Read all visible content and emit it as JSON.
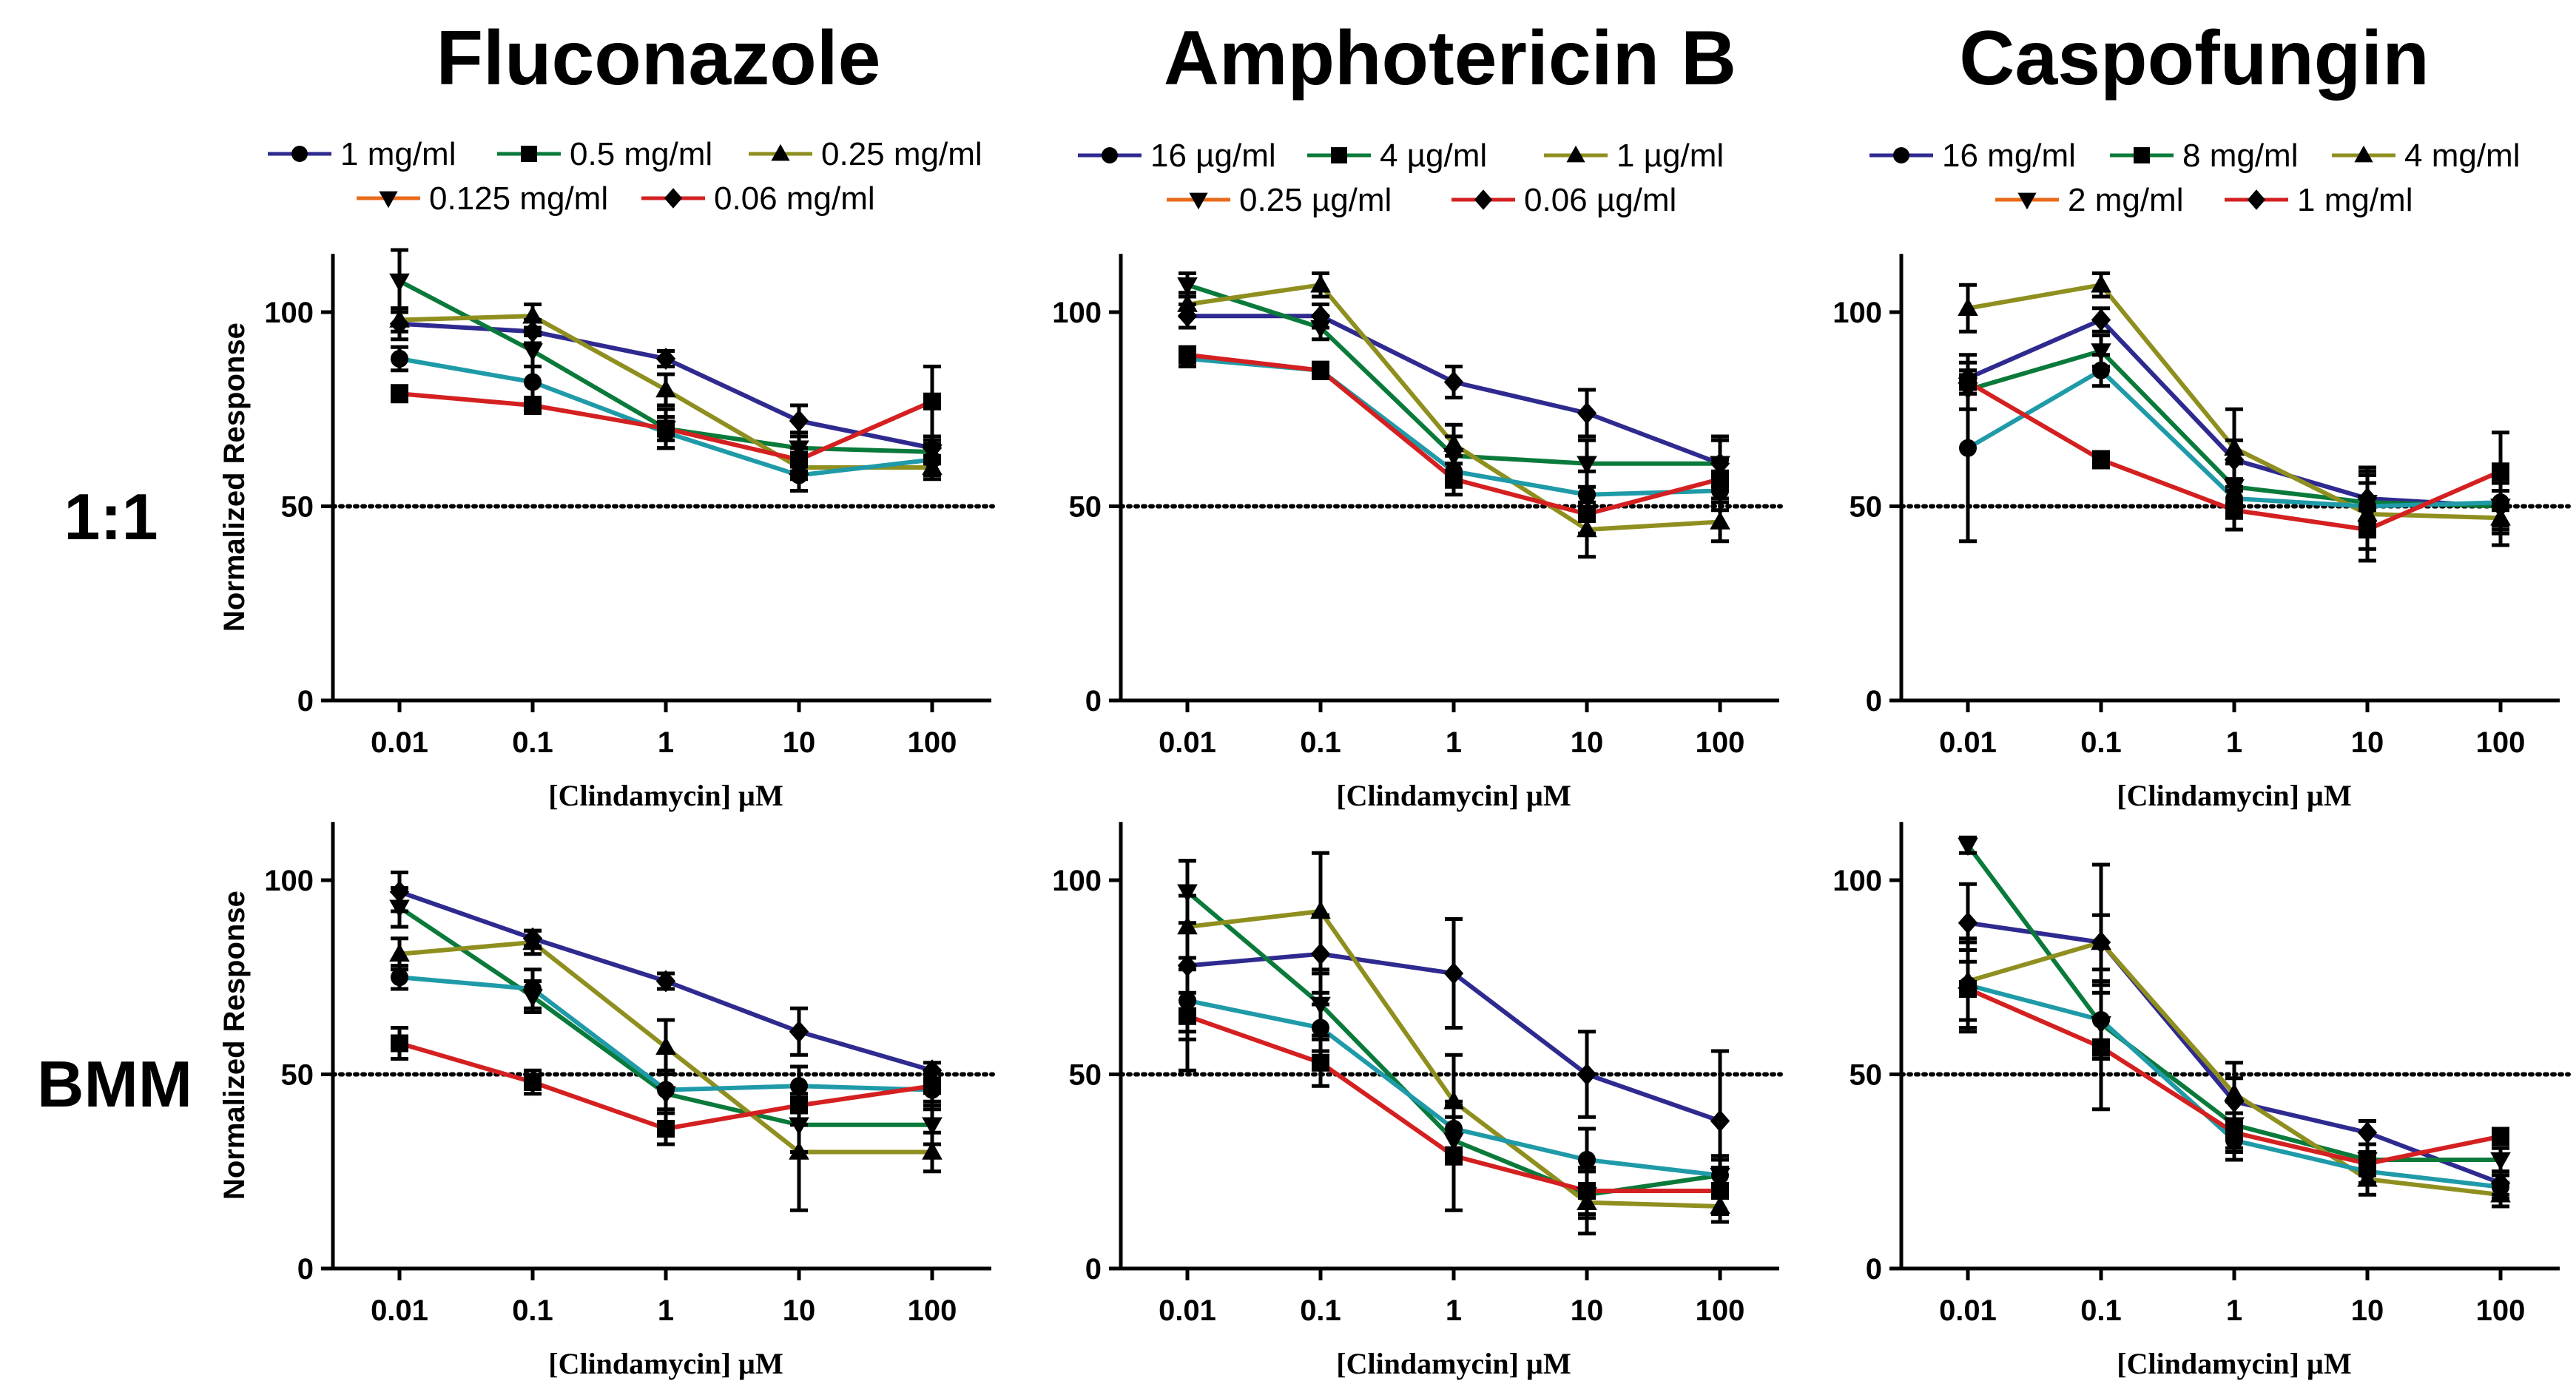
{
  "colors": {
    "s1": "#2e2a8f",
    "s2": "#0a7a3a",
    "s3": "#8f8f20",
    "s4": "#e86a1a",
    "s5": "#d42020",
    "s6": "#1f9aa8",
    "marker": "#000000"
  },
  "legend_markers": [
    "circle",
    "square",
    "triangle-up",
    "triangle-down",
    "diamond"
  ],
  "columns": [
    {
      "title": "Fluconazole",
      "legend": [
        "1 mg/ml",
        "0.5 mg/ml",
        "0.25 mg/ml",
        "0.125 mg/ml",
        "0.06 mg/ml"
      ]
    },
    {
      "title": "Amphotericin B",
      "legend": [
        "16 µg/ml",
        "4 µg/ml",
        "1 µg/ml",
        "0.25 µg/ml",
        "0.06 µg/ml"
      ]
    },
    {
      "title": "Caspofungin",
      "legend": [
        "16 mg/ml",
        "8 mg/ml",
        "4 mg/ml",
        "2 mg/ml",
        "1 mg/ml"
      ]
    }
  ],
  "rows": [
    {
      "label": "1:1"
    },
    {
      "label": "BMM"
    }
  ],
  "chart_data": [
    {
      "type": "line",
      "title": "Fluconazole",
      "row": "1:1",
      "categories": [
        "0.01",
        "0.1",
        "1",
        "10",
        "100"
      ],
      "xlabel": "[Clindamycin] µM",
      "ylabel": "Normalized  Response",
      "ylim": [
        0,
        115
      ],
      "yticks": [
        0,
        50,
        100
      ],
      "reference_line": 50,
      "series": [
        {
          "values": [
            97,
            95,
            88,
            72,
            65
          ],
          "marker": "diamond",
          "color": "s1",
          "err": [
            4,
            3,
            2,
            4,
            3
          ]
        },
        {
          "values": [
            108,
            90,
            70,
            65,
            64
          ],
          "marker": "triangle-down",
          "color": "s2",
          "err": [
            8,
            4,
            5,
            4,
            3
          ]
        },
        {
          "values": [
            98,
            99,
            80,
            60,
            60
          ],
          "marker": "triangle-up",
          "color": "s3",
          "err": [
            3,
            3,
            4,
            3,
            3
          ]
        },
        {
          "values": [
            88,
            82,
            69,
            58,
            62
          ],
          "marker": "circle",
          "color": "s6",
          "err": [
            3,
            4,
            4,
            4,
            4
          ]
        },
        {
          "values": [
            79,
            76,
            70,
            62,
            77
          ],
          "marker": "square",
          "color": "s5",
          "err": [
            2,
            2,
            3,
            3,
            9
          ]
        }
      ]
    },
    {
      "type": "line",
      "title": "Amphotericin B",
      "row": "1:1",
      "categories": [
        "0.01",
        "0.1",
        "1",
        "10",
        "100"
      ],
      "xlabel": "[Clindamycin] µM",
      "ylabel": "",
      "ylim": [
        0,
        115
      ],
      "yticks": [
        0,
        50,
        100
      ],
      "reference_line": 50,
      "series": [
        {
          "values": [
            99,
            99,
            82,
            74,
            61
          ],
          "marker": "diamond",
          "color": "s1",
          "err": [
            3,
            3,
            4,
            6,
            7
          ]
        },
        {
          "values": [
            107,
            96,
            63,
            61,
            61
          ],
          "marker": "triangle-down",
          "color": "s2",
          "err": [
            3,
            3,
            5,
            6,
            6
          ]
        },
        {
          "values": [
            102,
            107,
            66,
            44,
            46
          ],
          "marker": "triangle-up",
          "color": "s3",
          "err": [
            3,
            3,
            5,
            7,
            5
          ]
        },
        {
          "values": [
            88,
            85,
            59,
            53,
            54
          ],
          "marker": "circle",
          "color": "s6",
          "err": [
            2,
            2,
            4,
            6,
            5
          ]
        },
        {
          "values": [
            89,
            85,
            57,
            48,
            57
          ],
          "marker": "square",
          "color": "s5",
          "err": [
            2,
            2,
            4,
            5,
            5
          ]
        }
      ]
    },
    {
      "type": "line",
      "title": "Caspofungin",
      "row": "1:1",
      "categories": [
        "0.01",
        "0.1",
        "1",
        "10",
        "100"
      ],
      "xlabel": "[Clindamycin] µM",
      "ylabel": "",
      "ylim": [
        0,
        115
      ],
      "yticks": [
        0,
        50,
        100
      ],
      "reference_line": 50,
      "series": [
        {
          "values": [
            83,
            98,
            62,
            52,
            50
          ],
          "marker": "diamond",
          "color": "s1",
          "err": [
            4,
            3,
            5,
            6,
            6
          ]
        },
        {
          "values": [
            80,
            90,
            55,
            51,
            50
          ],
          "marker": "triangle-down",
          "color": "s2",
          "err": [
            5,
            4,
            6,
            8,
            7
          ]
        },
        {
          "values": [
            101,
            107,
            65,
            48,
            47
          ],
          "marker": "triangle-up",
          "color": "s3",
          "err": [
            6,
            3,
            10,
            12,
            7
          ]
        },
        {
          "values": [
            65,
            85,
            52,
            50,
            51
          ],
          "marker": "circle",
          "color": "s6",
          "err": [
            24,
            4,
            5,
            6,
            6
          ]
        },
        {
          "values": [
            82,
            62,
            49,
            44,
            59
          ],
          "marker": "square",
          "color": "s5",
          "err": [
            3,
            2,
            5,
            5,
            10
          ]
        }
      ]
    },
    {
      "type": "line",
      "title": "Fluconazole",
      "row": "BMM",
      "categories": [
        "0.01",
        "0.1",
        "1",
        "10",
        "100"
      ],
      "xlabel": "[Clindamycin]  µM",
      "ylabel": "Normalized  Response",
      "ylim": [
        0,
        115
      ],
      "yticks": [
        0,
        50,
        100
      ],
      "reference_line": 50,
      "series": [
        {
          "values": [
            97,
            85,
            74,
            61,
            51
          ],
          "marker": "diamond",
          "color": "s1",
          "err": [
            5,
            2,
            2,
            6,
            2
          ]
        },
        {
          "values": [
            93,
            70,
            45,
            37,
            37
          ],
          "marker": "triangle-down",
          "color": "s2",
          "err": [
            5,
            4,
            5,
            7,
            5
          ]
        },
        {
          "values": [
            81,
            84,
            57,
            30,
            30
          ],
          "marker": "triangle-up",
          "color": "s3",
          "err": [
            4,
            3,
            7,
            15,
            5
          ]
        },
        {
          "values": [
            75,
            72,
            46,
            47,
            46
          ],
          "marker": "circle",
          "color": "s6",
          "err": [
            3,
            5,
            5,
            5,
            5
          ]
        },
        {
          "values": [
            58,
            48,
            36,
            42,
            47
          ],
          "marker": "square",
          "color": "s5",
          "err": [
            4,
            3,
            4,
            5,
            4
          ]
        }
      ]
    },
    {
      "type": "line",
      "title": "Amphotericin B",
      "row": "BMM",
      "categories": [
        "0.01",
        "0.1",
        "1",
        "10",
        "100"
      ],
      "xlabel": "[Clindamycin]  µM",
      "ylabel": "",
      "ylim": [
        0,
        115
      ],
      "yticks": [
        0,
        50,
        100
      ],
      "reference_line": 50,
      "series": [
        {
          "values": [
            78,
            81,
            76,
            50,
            38
          ],
          "marker": "diamond",
          "color": "s1",
          "err": [
            27,
            10,
            14,
            11,
            18
          ]
        },
        {
          "values": [
            97,
            68,
            33,
            19,
            24
          ],
          "marker": "triangle-down",
          "color": "s2",
          "err": [
            8,
            8,
            6,
            6,
            4
          ]
        },
        {
          "values": [
            88,
            92,
            43,
            17,
            16
          ],
          "marker": "triangle-up",
          "color": "s3",
          "err": [
            8,
            15,
            12,
            8,
            4
          ]
        },
        {
          "values": [
            69,
            62,
            36,
            28,
            24
          ],
          "marker": "circle",
          "color": "s6",
          "err": [
            8,
            6,
            6,
            8,
            5
          ]
        },
        {
          "values": [
            65,
            53,
            29,
            20,
            20
          ],
          "marker": "square",
          "color": "s5",
          "err": [
            6,
            6,
            14,
            6,
            6
          ]
        }
      ]
    },
    {
      "type": "line",
      "title": "Caspofungin",
      "row": "BMM",
      "categories": [
        "0.01",
        "0.1",
        "1",
        "10",
        "100"
      ],
      "xlabel": "[Clindamycin]  µM",
      "ylabel": "",
      "ylim": [
        0,
        115
      ],
      "yticks": [
        0,
        50,
        100
      ],
      "reference_line": 50,
      "series": [
        {
          "values": [
            89,
            84,
            43,
            35,
            22
          ],
          "marker": "diamond",
          "color": "s1",
          "err": [
            10,
            7,
            6,
            3,
            3
          ]
        },
        {
          "values": [
            109,
            63,
            37,
            28,
            28
          ],
          "marker": "triangle-down",
          "color": "s2",
          "err": [
            2,
            8,
            6,
            4,
            3
          ]
        },
        {
          "values": [
            74,
            84,
            45,
            23,
            19
          ],
          "marker": "triangle-up",
          "color": "s3",
          "err": [
            10,
            20,
            8,
            4,
            3
          ]
        },
        {
          "values": [
            73,
            64,
            33,
            25,
            21
          ],
          "marker": "circle",
          "color": "s6",
          "err": [
            12,
            10,
            5,
            3,
            3
          ]
        },
        {
          "values": [
            72,
            57,
            35,
            27,
            34
          ],
          "marker": "square",
          "color": "s5",
          "err": [
            10,
            16,
            5,
            3,
            2
          ]
        }
      ]
    }
  ]
}
